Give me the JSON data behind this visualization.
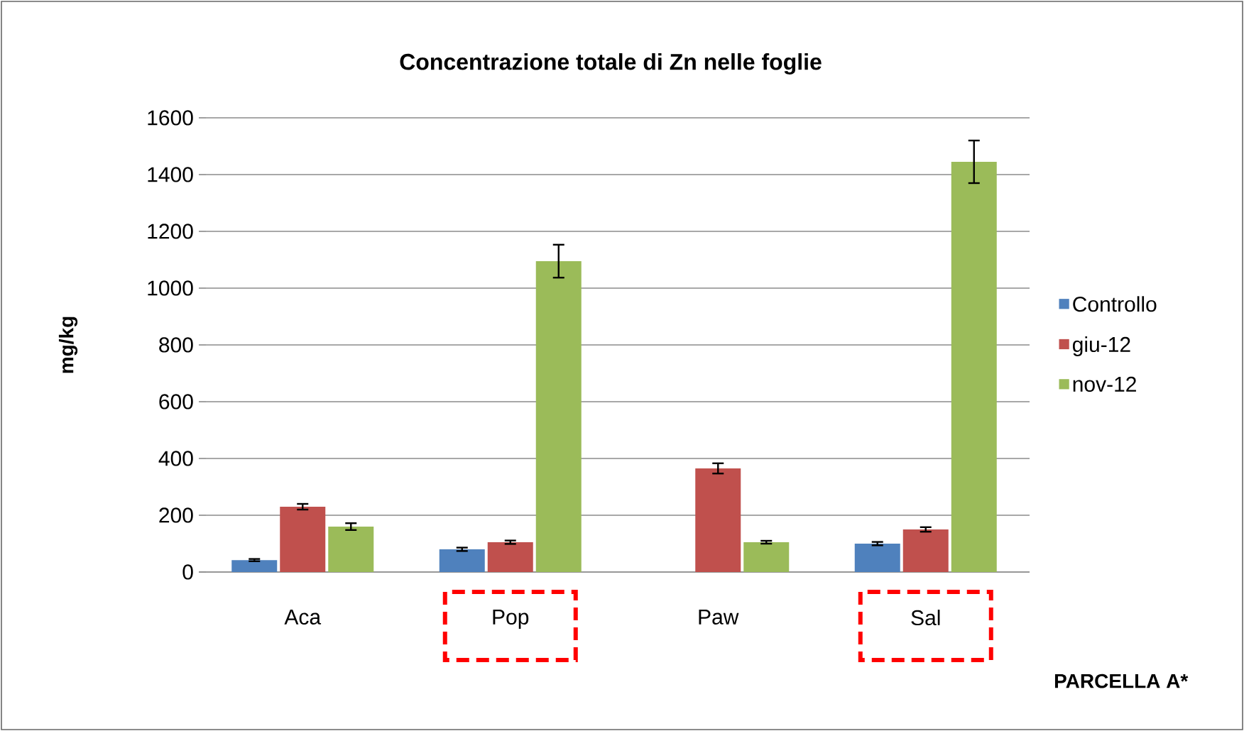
{
  "chart_data": {
    "type": "bar",
    "title": "Concentrazione totale di Zn nelle foglie",
    "xlabel": "PARCELLA A*",
    "ylabel": "mg/kg",
    "categories": [
      "Aca",
      "Pop",
      "Paw",
      "Sal"
    ],
    "series": [
      {
        "name": "Controllo",
        "color": "#4f81bd",
        "values": [
          42,
          80,
          null,
          100
        ],
        "errors": [
          4,
          6,
          null,
          6
        ]
      },
      {
        "name": "giu-12",
        "color": "#c0504d",
        "values": [
          230,
          105,
          365,
          150
        ],
        "errors": [
          10,
          6,
          18,
          8
        ]
      },
      {
        "name": "nov-12",
        "color": "#9bbb59",
        "values": [
          160,
          1095,
          105,
          1445
        ],
        "errors": [
          12,
          58,
          5,
          75
        ]
      }
    ],
    "ylim": [
      0,
      1600
    ],
    "yticks": [
      0,
      200,
      400,
      600,
      800,
      1000,
      1200,
      1400,
      1600
    ],
    "grid": "y",
    "legend": "right"
  }
}
